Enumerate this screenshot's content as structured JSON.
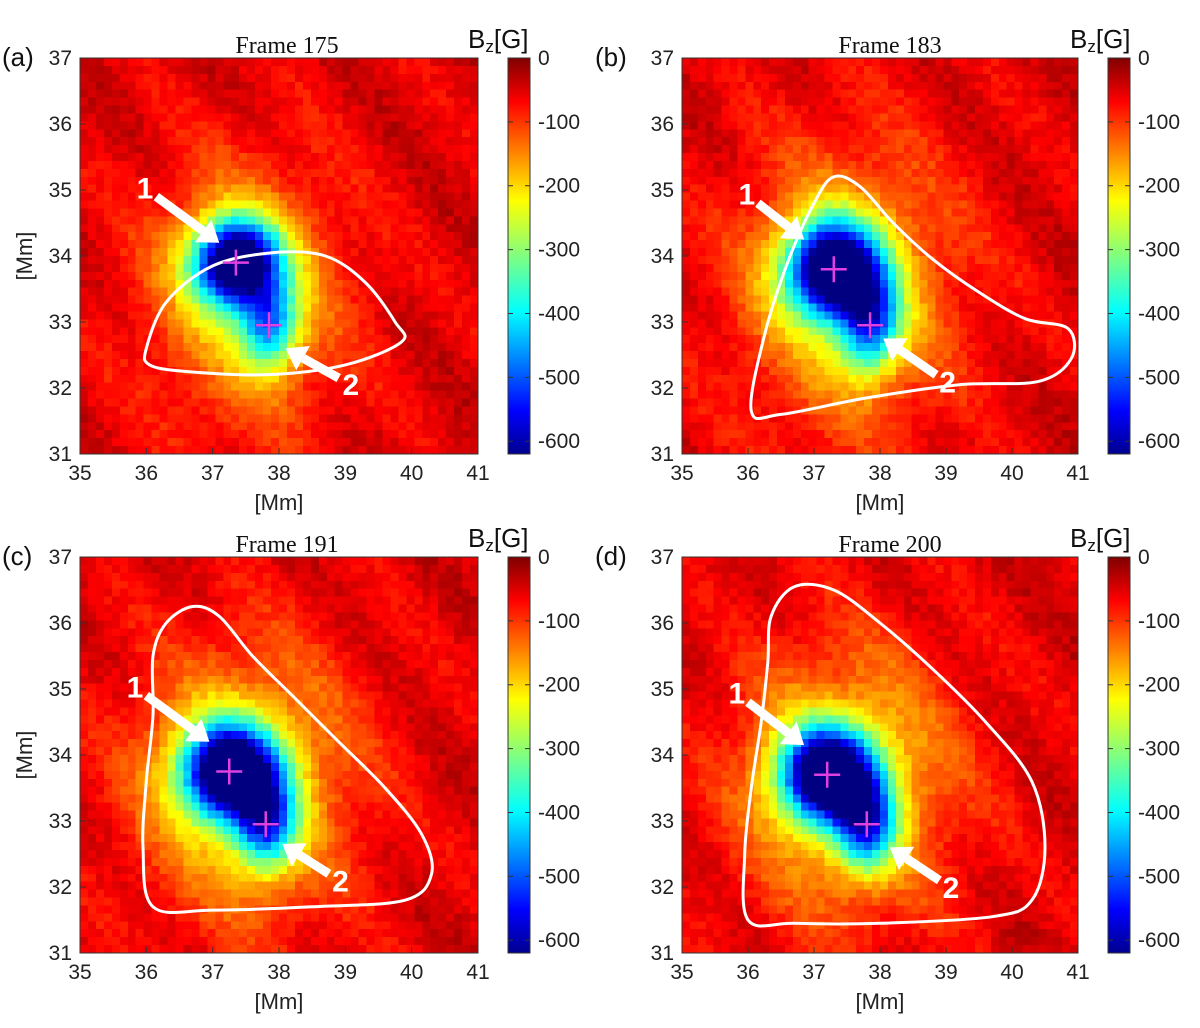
{
  "chart_data": [
    {
      "type": "heatmap",
      "panel_label": "(a)",
      "title": "Frame 175",
      "xlabel": "[Mm]",
      "ylabel": "[Mm]",
      "xlim": [
        35,
        41
      ],
      "ylim": [
        31,
        37
      ],
      "xticks": [
        "35",
        "36",
        "37",
        "38",
        "39",
        "40",
        "41"
      ],
      "yticks": [
        "31",
        "32",
        "33",
        "34",
        "35",
        "36",
        "37"
      ],
      "colorbar": {
        "label": "Bz[G]",
        "range": [
          -620,
          0
        ],
        "ticks": [
          "0",
          "-100",
          "-200",
          "-300",
          "-400",
          "-500",
          "-600"
        ]
      },
      "core1": {
        "x": 37.35,
        "y": 33.9,
        "sigx": 0.45,
        "sigy": 0.45,
        "amp": 600
      },
      "core2": {
        "x": 37.85,
        "y": 32.95,
        "sigx": 0.3,
        "sigy": 0.45,
        "amp": 300
      },
      "halo": {
        "x": 37.5,
        "y": 33.4,
        "sigx": 1.05,
        "sigy": 1.4,
        "amp": 140
      },
      "markers": [
        {
          "x": 37.35,
          "y": 33.9
        },
        {
          "x": 37.85,
          "y": 32.95
        }
      ],
      "arrows": [
        {
          "label": "1",
          "tail": [
            36.15,
            34.9
          ],
          "head": [
            37.1,
            34.2
          ]
        },
        {
          "label": "2",
          "tail": [
            38.9,
            32.15
          ],
          "head": [
            38.1,
            32.6
          ]
        }
      ],
      "contour": [
        [
          36.0,
          32.6
        ],
        [
          36.3,
          33.3
        ],
        [
          37.0,
          33.85
        ],
        [
          37.9,
          34.05
        ],
        [
          38.7,
          34.0
        ],
        [
          39.3,
          33.6
        ],
        [
          39.75,
          33.0
        ],
        [
          39.85,
          32.7
        ],
        [
          39.0,
          32.35
        ],
        [
          37.8,
          32.2
        ],
        [
          36.6,
          32.25
        ],
        [
          36.05,
          32.35
        ]
      ]
    },
    {
      "type": "heatmap",
      "panel_label": "(b)",
      "title": "Frame 183",
      "xlabel": "[Mm]",
      "ylabel": "",
      "xlim": [
        35,
        41
      ],
      "ylim": [
        31,
        37
      ],
      "xticks": [
        "35",
        "36",
        "37",
        "38",
        "39",
        "40",
        "41"
      ],
      "yticks": [
        "31",
        "32",
        "33",
        "34",
        "35",
        "36",
        "37"
      ],
      "colorbar": {
        "label": "Bz[G]",
        "range": [
          -620,
          0
        ],
        "ticks": [
          "0",
          "-100",
          "-200",
          "-300",
          "-400",
          "-500",
          "-600"
        ]
      },
      "core1": {
        "x": 37.3,
        "y": 33.8,
        "sigx": 0.5,
        "sigy": 0.5,
        "amp": 600
      },
      "core2": {
        "x": 37.85,
        "y": 32.95,
        "sigx": 0.32,
        "sigy": 0.5,
        "amp": 320
      },
      "halo": {
        "x": 37.5,
        "y": 33.5,
        "sigx": 1.15,
        "sigy": 1.5,
        "amp": 150
      },
      "markers": [
        {
          "x": 37.3,
          "y": 33.8
        },
        {
          "x": 37.85,
          "y": 32.95
        }
      ],
      "arrows": [
        {
          "label": "1",
          "tail": [
            36.15,
            34.8
          ],
          "head": [
            36.85,
            34.25
          ]
        },
        {
          "label": "2",
          "tail": [
            38.85,
            32.2
          ],
          "head": [
            38.05,
            32.75
          ]
        }
      ],
      "contour": [
        [
          36.05,
          31.65
        ],
        [
          36.25,
          32.8
        ],
        [
          36.6,
          33.9
        ],
        [
          37.0,
          34.8
        ],
        [
          37.3,
          35.2
        ],
        [
          37.7,
          35.05
        ],
        [
          38.2,
          34.5
        ],
        [
          38.8,
          33.95
        ],
        [
          39.5,
          33.45
        ],
        [
          40.2,
          33.05
        ],
        [
          40.85,
          32.9
        ],
        [
          40.9,
          32.45
        ],
        [
          40.4,
          32.1
        ],
        [
          39.2,
          32.05
        ],
        [
          37.8,
          31.85
        ],
        [
          36.5,
          31.6
        ]
      ]
    },
    {
      "type": "heatmap",
      "panel_label": "(c)",
      "title": "Frame 191",
      "xlabel": "[Mm]",
      "ylabel": "[Mm]",
      "xlim": [
        35,
        41
      ],
      "ylim": [
        31,
        37
      ],
      "xticks": [
        "35",
        "36",
        "37",
        "38",
        "39",
        "40",
        "41"
      ],
      "yticks": [
        "31",
        "32",
        "33",
        "34",
        "35",
        "36",
        "37"
      ],
      "colorbar": {
        "label": "Bz[G]",
        "range": [
          -620,
          0
        ],
        "ticks": [
          "0",
          "-100",
          "-200",
          "-300",
          "-400",
          "-500",
          "-600"
        ]
      },
      "core1": {
        "x": 37.25,
        "y": 33.75,
        "sigx": 0.5,
        "sigy": 0.5,
        "amp": 600
      },
      "core2": {
        "x": 37.8,
        "y": 32.95,
        "sigx": 0.32,
        "sigy": 0.5,
        "amp": 320
      },
      "halo": {
        "x": 37.5,
        "y": 33.6,
        "sigx": 1.15,
        "sigy": 1.45,
        "amp": 160
      },
      "markers": [
        {
          "x": 37.25,
          "y": 33.75
        },
        {
          "x": 37.8,
          "y": 32.95
        }
      ],
      "arrows": [
        {
          "label": "1",
          "tail": [
            36.0,
            34.9
          ],
          "head": [
            36.95,
            34.2
          ]
        },
        {
          "label": "2",
          "tail": [
            38.75,
            32.2
          ],
          "head": [
            38.05,
            32.65
          ]
        }
      ],
      "contour": [
        [
          36.1,
          31.7
        ],
        [
          35.95,
          32.6
        ],
        [
          36.0,
          33.6
        ],
        [
          36.1,
          34.6
        ],
        [
          36.1,
          35.5
        ],
        [
          36.3,
          36.0
        ],
        [
          36.7,
          36.25
        ],
        [
          37.1,
          36.1
        ],
        [
          37.6,
          35.5
        ],
        [
          38.2,
          34.9
        ],
        [
          38.9,
          34.2
        ],
        [
          39.6,
          33.5
        ],
        [
          40.15,
          32.8
        ],
        [
          40.3,
          32.2
        ],
        [
          39.9,
          31.8
        ],
        [
          38.5,
          31.7
        ],
        [
          37.0,
          31.65
        ]
      ]
    },
    {
      "type": "heatmap",
      "panel_label": "(d)",
      "title": "Frame 200",
      "xlabel": "[Mm]",
      "ylabel": "",
      "xlim": [
        35,
        41
      ],
      "ylim": [
        31,
        37
      ],
      "xticks": [
        "35",
        "36",
        "37",
        "38",
        "39",
        "40",
        "41"
      ],
      "yticks": [
        "31",
        "32",
        "33",
        "34",
        "35",
        "36",
        "37"
      ],
      "colorbar": {
        "label": "Bz[G]",
        "range": [
          -620,
          0
        ],
        "ticks": [
          "0",
          "-100",
          "-200",
          "-300",
          "-400",
          "-500",
          "-600"
        ]
      },
      "core1": {
        "x": 37.2,
        "y": 33.7,
        "sigx": 0.5,
        "sigy": 0.5,
        "amp": 600
      },
      "core2": {
        "x": 37.8,
        "y": 32.95,
        "sigx": 0.32,
        "sigy": 0.5,
        "amp": 320
      },
      "halo": {
        "x": 37.5,
        "y": 33.6,
        "sigx": 1.15,
        "sigy": 1.45,
        "amp": 160
      },
      "markers": [
        {
          "x": 37.2,
          "y": 33.7
        },
        {
          "x": 37.8,
          "y": 32.95
        }
      ],
      "arrows": [
        {
          "label": "1",
          "tail": [
            36.0,
            34.8
          ],
          "head": [
            36.85,
            34.15
          ]
        },
        {
          "label": "2",
          "tail": [
            38.9,
            32.1
          ],
          "head": [
            38.15,
            32.6
          ]
        }
      ],
      "contour": [
        [
          36.0,
          31.5
        ],
        [
          35.95,
          32.5
        ],
        [
          36.05,
          33.5
        ],
        [
          36.2,
          34.5
        ],
        [
          36.3,
          35.4
        ],
        [
          36.35,
          36.1
        ],
        [
          36.7,
          36.55
        ],
        [
          37.3,
          36.5
        ],
        [
          38.0,
          36.0
        ],
        [
          38.8,
          35.3
        ],
        [
          39.6,
          34.5
        ],
        [
          40.3,
          33.6
        ],
        [
          40.5,
          32.6
        ],
        [
          40.3,
          31.8
        ],
        [
          39.7,
          31.55
        ],
        [
          38.0,
          31.45
        ],
        [
          36.7,
          31.45
        ]
      ]
    }
  ]
}
